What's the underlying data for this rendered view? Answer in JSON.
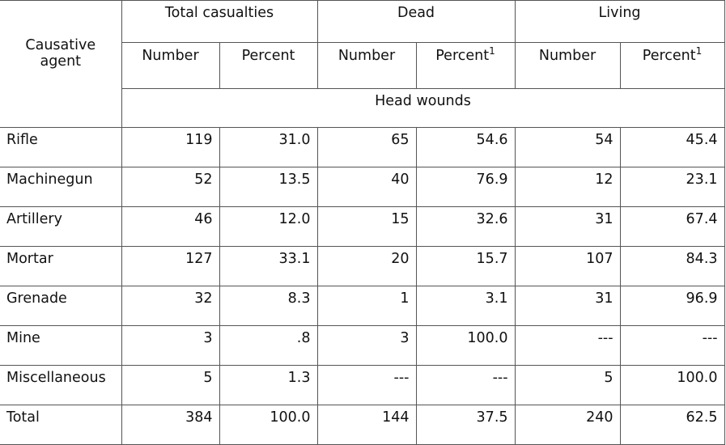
{
  "table": {
    "agent_header": "Causative agent",
    "group_headers": [
      "Total casualties",
      "Dead",
      "Living"
    ],
    "sub_headers": {
      "number": "Number",
      "percent": "Percent",
      "footnote_mark": "1"
    },
    "section_label": "Head wounds",
    "rows": [
      {
        "agent": "Rifle",
        "total_number": "119",
        "total_percent": "31.0",
        "dead_number": "65",
        "dead_percent": "54.6",
        "living_number": "54",
        "living_percent": "45.4"
      },
      {
        "agent": "Machinegun",
        "total_number": "52",
        "total_percent": "13.5",
        "dead_number": "40",
        "dead_percent": "76.9",
        "living_number": "12",
        "living_percent": "23.1"
      },
      {
        "agent": "Artillery",
        "total_number": "46",
        "total_percent": "12.0",
        "dead_number": "15",
        "dead_percent": "32.6",
        "living_number": "31",
        "living_percent": "67.4"
      },
      {
        "agent": "Mortar",
        "total_number": "127",
        "total_percent": "33.1",
        "dead_number": "20",
        "dead_percent": "15.7",
        "living_number": "107",
        "living_percent": "84.3"
      },
      {
        "agent": "Grenade",
        "total_number": "32",
        "total_percent": "8.3",
        "dead_number": "1",
        "dead_percent": "3.1",
        "living_number": "31",
        "living_percent": "96.9"
      },
      {
        "agent": "Mine",
        "total_number": "3",
        "total_percent": ".8",
        "dead_number": "3",
        "dead_percent": "100.0",
        "living_number": "---",
        "living_percent": "---"
      },
      {
        "agent": "Miscellaneous",
        "total_number": "5",
        "total_percent": "1.3",
        "dead_number": "---",
        "dead_percent": "---",
        "living_number": "5",
        "living_percent": "100.0"
      },
      {
        "agent": "Total",
        "total_number": "384",
        "total_percent": "100.0",
        "dead_number": "144",
        "dead_percent": "37.5",
        "living_number": "240",
        "living_percent": "62.5"
      }
    ]
  }
}
